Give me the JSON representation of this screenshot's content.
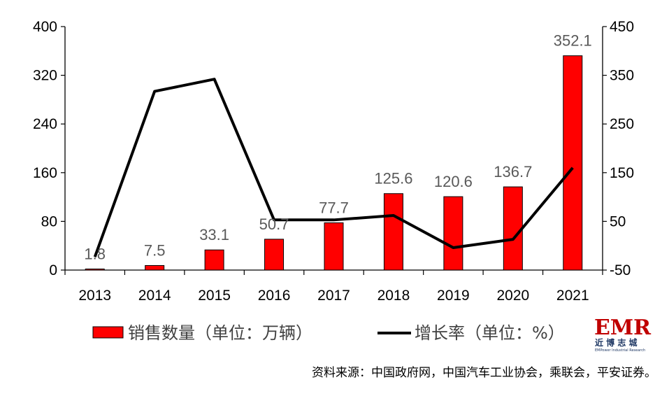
{
  "chart_data": {
    "type": "bar",
    "categories": [
      "2013",
      "2014",
      "2015",
      "2016",
      "2017",
      "2018",
      "2019",
      "2020",
      "2021"
    ],
    "series": [
      {
        "name": "销售数量（单位：万辆）",
        "type": "bar",
        "axis": "left",
        "color": "#ff0000",
        "values": [
          1.8,
          7.5,
          33.1,
          50.7,
          77.7,
          125.6,
          120.6,
          136.7,
          352.1
        ],
        "labels": [
          "1.8",
          "7.5",
          "33.1",
          "50.7",
          "77.7",
          "125.6",
          "120.6",
          "136.7",
          "352.1"
        ]
      },
      {
        "name": "增长率（单位：%）",
        "type": "line",
        "axis": "right",
        "color": "#000000",
        "values": [
          -23,
          317,
          342,
          53,
          53,
          62,
          -4,
          13,
          160
        ]
      }
    ],
    "y_left": {
      "ylim": [
        0,
        400
      ],
      "ticks": [
        "0",
        "80",
        "160",
        "240",
        "320",
        "400"
      ]
    },
    "y_right": {
      "ylim": [
        -50,
        450
      ],
      "ticks": [
        "-50",
        "50",
        "150",
        "250",
        "350",
        "450"
      ]
    },
    "grid": false,
    "legend": "bottom",
    "xlabel": "",
    "ylabel": ""
  },
  "source": "资料来源：中国政府网，中国汽车工业协会，乘联会，平安证券。",
  "logo": {
    "mark": "EMR",
    "cn": "近 博 志 城",
    "en": "EMPower Industrial Research"
  }
}
